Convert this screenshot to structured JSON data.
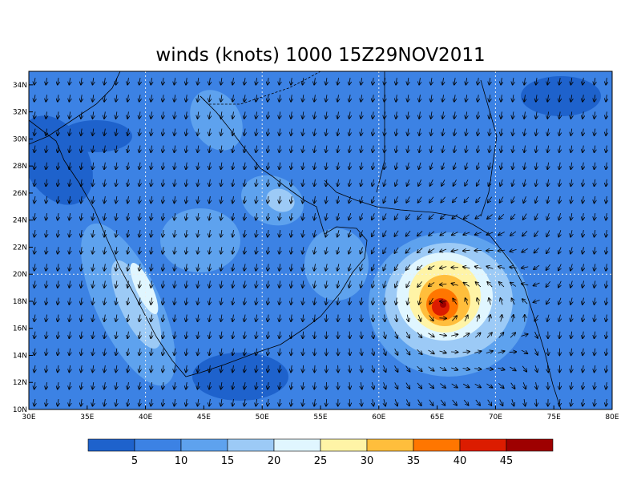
{
  "title": "winds (knots) 1000 15Z29NOV2011",
  "map": {
    "lon_labels": [
      "30E",
      "35E",
      "40E",
      "45E",
      "50E",
      "55E",
      "60E",
      "65E",
      "70E",
      "75E",
      "80E"
    ],
    "lat_labels": [
      "10N",
      "12N",
      "14N",
      "16N",
      "18N",
      "20N",
      "22N",
      "24N",
      "26N",
      "28N",
      "30N",
      "32N",
      "34N"
    ]
  },
  "colorbar": {
    "colors": [
      "#1e62cc",
      "#3c82e4",
      "#5ea2ee",
      "#9ccaf6",
      "#e0f6ff",
      "#fff4a6",
      "#ffbe3c",
      "#ff7600",
      "#dc1c00",
      "#9e0000"
    ],
    "labels": [
      "5",
      "10",
      "15",
      "20",
      "25",
      "30",
      "35",
      "40",
      "45"
    ]
  }
}
